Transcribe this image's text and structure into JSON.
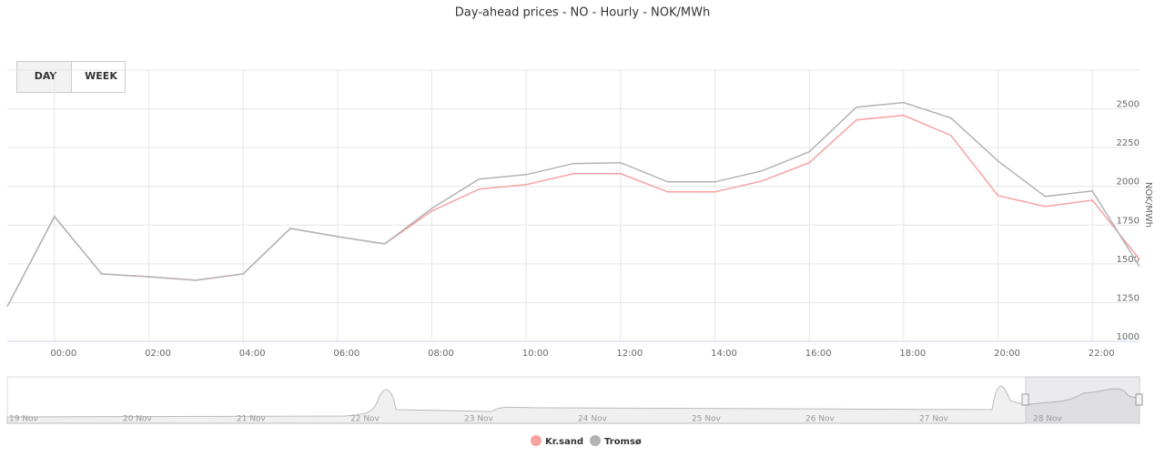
{
  "chart_data": {
    "type": "line",
    "title": "Day-ahead prices - NO - Hourly - NOK/MWh",
    "y_label": "NOK/MWh",
    "range_buttons": [
      "DAY",
      "WEEK"
    ],
    "navigator_dates": [
      "19 Nov",
      "20 Nov",
      "21 Nov",
      "22 Nov",
      "23 Nov",
      "24 Nov",
      "25 Nov",
      "26 Nov",
      "27 Nov",
      "28 Nov"
    ],
    "categories": [
      null,
      "00:00",
      null,
      "02:00",
      null,
      "04:00",
      null,
      "06:00",
      null,
      "08:00",
      null,
      "10:00",
      null,
      "12:00",
      null,
      "14:00",
      null,
      "16:00",
      null,
      "18:00",
      null,
      "20:00",
      null,
      "22:00",
      null
    ],
    "series": [
      {
        "name": "Kr.sand",
        "color": "#f7a1a1",
        "values": [
          1225,
          1805,
          1435,
          1417,
          1394,
          1435,
          1729,
          1676,
          1629,
          1841,
          1982,
          2011,
          2082,
          2082,
          1964,
          1964,
          2035,
          2153,
          2429,
          2458,
          2329,
          1941,
          1870,
          1911,
          1529
        ]
      },
      {
        "name": "Tromsø",
        "color": "#b3b3b3",
        "values": [
          1225,
          1805,
          1435,
          1417,
          1394,
          1435,
          1729,
          1676,
          1629,
          1858,
          2047,
          2076,
          2147,
          2153,
          2029,
          2029,
          2100,
          2223,
          2511,
          2541,
          2441,
          2164,
          1935,
          1970,
          1482
        ]
      }
    ],
    "ylim": [
      1000,
      2750
    ],
    "yticks": [
      1000,
      1250,
      1500,
      1750,
      2000,
      2250,
      2500
    ],
    "grid": true,
    "legend": "bottom"
  }
}
